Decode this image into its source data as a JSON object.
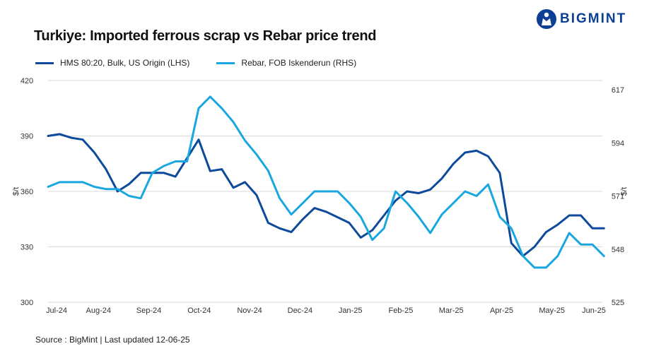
{
  "brand": {
    "name": "BIGMINT",
    "icon": "bigmint-logo-icon",
    "color": "#0d3f95"
  },
  "title": "Turkiye: Imported ferrous scrap vs Rebar price trend",
  "source": "Source : BigMint | Last updated 12-06-25",
  "chart_data": {
    "type": "line",
    "title": "Turkiye: Imported ferrous scrap vs Rebar price trend",
    "y_left": {
      "label": "$/t",
      "ticks": [
        300,
        330,
        360,
        390,
        420
      ],
      "lim": [
        300,
        420
      ]
    },
    "y_right": {
      "label": "$/t",
      "ticks": [
        525,
        548,
        571,
        594,
        617
      ],
      "lim": [
        525,
        621
      ]
    },
    "x_ticks": [
      "Jul-24",
      "Aug-24",
      "Sep-24",
      "Oct-24",
      "Nov-24",
      "Dec-24",
      "Jan-25",
      "Feb-25",
      "Mar-25",
      "Apr-25",
      "May-25",
      "Jun-25"
    ],
    "x_range": [
      "2024-07-01",
      "2025-06-01"
    ],
    "grid": "horizontal",
    "legend_position": "top-left",
    "series": [
      {
        "name": "HMS 80:20, Bulk, US Origin (LHS)",
        "axis": "left",
        "color": "#0d4a9c",
        "points": [
          [
            "2024-07-01",
            390
          ],
          [
            "2024-07-08",
            391
          ],
          [
            "2024-07-15",
            389
          ],
          [
            "2024-07-22",
            388
          ],
          [
            "2024-07-29",
            381
          ],
          [
            "2024-08-05",
            372
          ],
          [
            "2024-08-12",
            360
          ],
          [
            "2024-08-19",
            364
          ],
          [
            "2024-08-26",
            370
          ],
          [
            "2024-09-02",
            370
          ],
          [
            "2024-09-09",
            370
          ],
          [
            "2024-09-16",
            368
          ],
          [
            "2024-09-23",
            378
          ],
          [
            "2024-09-30",
            388
          ],
          [
            "2024-10-07",
            371
          ],
          [
            "2024-10-14",
            372
          ],
          [
            "2024-10-21",
            362
          ],
          [
            "2024-10-28",
            365
          ],
          [
            "2024-11-04",
            358
          ],
          [
            "2024-11-11",
            343
          ],
          [
            "2024-11-18",
            340
          ],
          [
            "2024-11-25",
            338
          ],
          [
            "2024-12-02",
            345
          ],
          [
            "2024-12-09",
            351
          ],
          [
            "2024-12-16",
            349
          ],
          [
            "2024-12-23",
            346
          ],
          [
            "2024-12-30",
            343
          ],
          [
            "2025-01-06",
            335
          ],
          [
            "2025-01-13",
            339
          ],
          [
            "2025-01-20",
            347
          ],
          [
            "2025-01-27",
            355
          ],
          [
            "2025-02-03",
            360
          ],
          [
            "2025-02-10",
            359
          ],
          [
            "2025-02-17",
            361
          ],
          [
            "2025-02-24",
            367
          ],
          [
            "2025-03-03",
            375
          ],
          [
            "2025-03-10",
            381
          ],
          [
            "2025-03-17",
            382
          ],
          [
            "2025-03-24",
            379
          ],
          [
            "2025-03-31",
            370
          ],
          [
            "2025-04-07",
            332
          ],
          [
            "2025-04-14",
            325
          ],
          [
            "2025-04-21",
            330
          ],
          [
            "2025-04-28",
            338
          ],
          [
            "2025-05-05",
            342
          ],
          [
            "2025-05-12",
            347
          ],
          [
            "2025-05-19",
            347
          ],
          [
            "2025-05-26",
            340
          ],
          [
            "2025-06-02",
            340
          ]
        ]
      },
      {
        "name": "Rebar, FOB Iskenderun (RHS)",
        "axis": "right",
        "color": "#1aa7e0",
        "points": [
          [
            "2024-07-01",
            575
          ],
          [
            "2024-07-08",
            577
          ],
          [
            "2024-07-15",
            577
          ],
          [
            "2024-07-22",
            577
          ],
          [
            "2024-07-29",
            575
          ],
          [
            "2024-08-05",
            574
          ],
          [
            "2024-08-12",
            574
          ],
          [
            "2024-08-19",
            571
          ],
          [
            "2024-08-26",
            570
          ],
          [
            "2024-09-02",
            581
          ],
          [
            "2024-09-09",
            584
          ],
          [
            "2024-09-16",
            586
          ],
          [
            "2024-09-23",
            586
          ],
          [
            "2024-09-30",
            609
          ],
          [
            "2024-10-07",
            614
          ],
          [
            "2024-10-14",
            609
          ],
          [
            "2024-10-21",
            603
          ],
          [
            "2024-10-28",
            595
          ],
          [
            "2024-11-04",
            589
          ],
          [
            "2024-11-11",
            582
          ],
          [
            "2024-11-18",
            570
          ],
          [
            "2024-11-25",
            563
          ],
          [
            "2024-12-02",
            568
          ],
          [
            "2024-12-09",
            573
          ],
          [
            "2024-12-16",
            573
          ],
          [
            "2024-12-23",
            573
          ],
          [
            "2024-12-30",
            568
          ],
          [
            "2025-01-06",
            562
          ],
          [
            "2025-01-13",
            552
          ],
          [
            "2025-01-20",
            557
          ],
          [
            "2025-01-27",
            573
          ],
          [
            "2025-02-03",
            568
          ],
          [
            "2025-02-10",
            562
          ],
          [
            "2025-02-17",
            555
          ],
          [
            "2025-02-24",
            563
          ],
          [
            "2025-03-03",
            568
          ],
          [
            "2025-03-10",
            573
          ],
          [
            "2025-03-17",
            571
          ],
          [
            "2025-03-24",
            576
          ],
          [
            "2025-03-31",
            562
          ],
          [
            "2025-04-07",
            557
          ],
          [
            "2025-04-14",
            545
          ],
          [
            "2025-04-21",
            540
          ],
          [
            "2025-04-28",
            540
          ],
          [
            "2025-05-05",
            545
          ],
          [
            "2025-05-12",
            555
          ],
          [
            "2025-05-19",
            550
          ],
          [
            "2025-05-26",
            550
          ],
          [
            "2025-06-02",
            545
          ]
        ]
      }
    ]
  }
}
